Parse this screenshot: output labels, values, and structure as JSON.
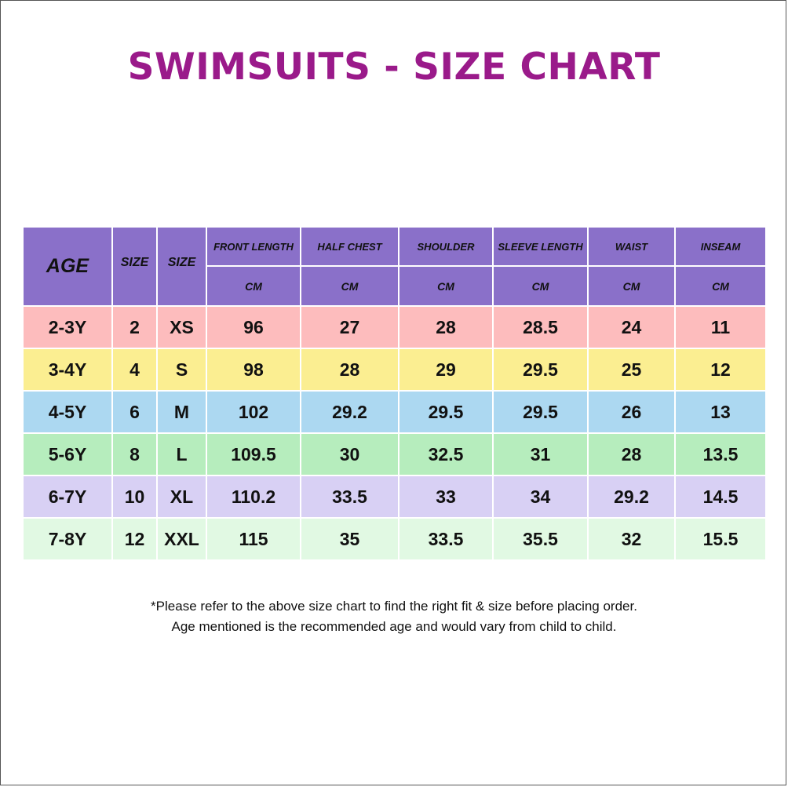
{
  "title": "SWIMSUITS - SIZE CHART",
  "table": {
    "header": {
      "age": "AGE",
      "size_num": "SIZE",
      "size_letter": "SIZE",
      "measures": [
        {
          "label": "FRONT LENGTH",
          "unit": "CM"
        },
        {
          "label": "HALF CHEST",
          "unit": "CM"
        },
        {
          "label": "SHOULDER",
          "unit": "CM"
        },
        {
          "label": "SLEEVE LENGTH",
          "unit": "CM"
        },
        {
          "label": "WAIST",
          "unit": "CM"
        },
        {
          "label": "INSEAM",
          "unit": "CM"
        }
      ]
    },
    "rows": [
      [
        "2-3Y",
        "2",
        "XS",
        "96",
        "27",
        "28",
        "28.5",
        "24",
        "11"
      ],
      [
        "3-4Y",
        "4",
        "S",
        "98",
        "28",
        "29",
        "29.5",
        "25",
        "12"
      ],
      [
        "4-5Y",
        "6",
        "M",
        "102",
        "29.2",
        "29.5",
        "29.5",
        "26",
        "13"
      ],
      [
        "5-6Y",
        "8",
        "L",
        "109.5",
        "30",
        "32.5",
        "31",
        "28",
        "13.5"
      ],
      [
        "6-7Y",
        "10",
        "XL",
        "110.2",
        "33.5",
        "33",
        "34",
        "29.2",
        "14.5"
      ],
      [
        "7-8Y",
        "12",
        "XXL",
        "115",
        "35",
        "33.5",
        "35.5",
        "32",
        "15.5"
      ]
    ],
    "row_colors": [
      "#fdbcbd",
      "#fbee91",
      "#acd8f1",
      "#b6edbd",
      "#d8d0f4",
      "#e1f9e3"
    ],
    "header_color": "#8a70c9"
  },
  "notes": {
    "line1": "*Please refer to the above size chart to find the right fit & size before placing order.",
    "line2": "Age mentioned is the recommended age and would vary from child to child."
  },
  "colors": {
    "title": "#9a1a8a"
  }
}
